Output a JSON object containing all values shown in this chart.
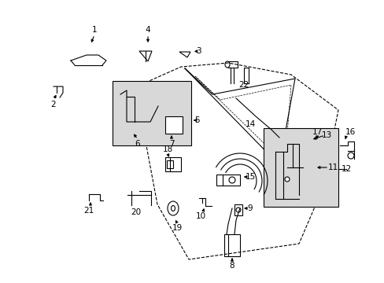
{
  "bg_color": "#ffffff",
  "fig_width": 4.89,
  "fig_height": 3.6,
  "dpi": 100,
  "line_color": "#000000",
  "box_fill": "#d8d8d8",
  "line_width": 0.8
}
